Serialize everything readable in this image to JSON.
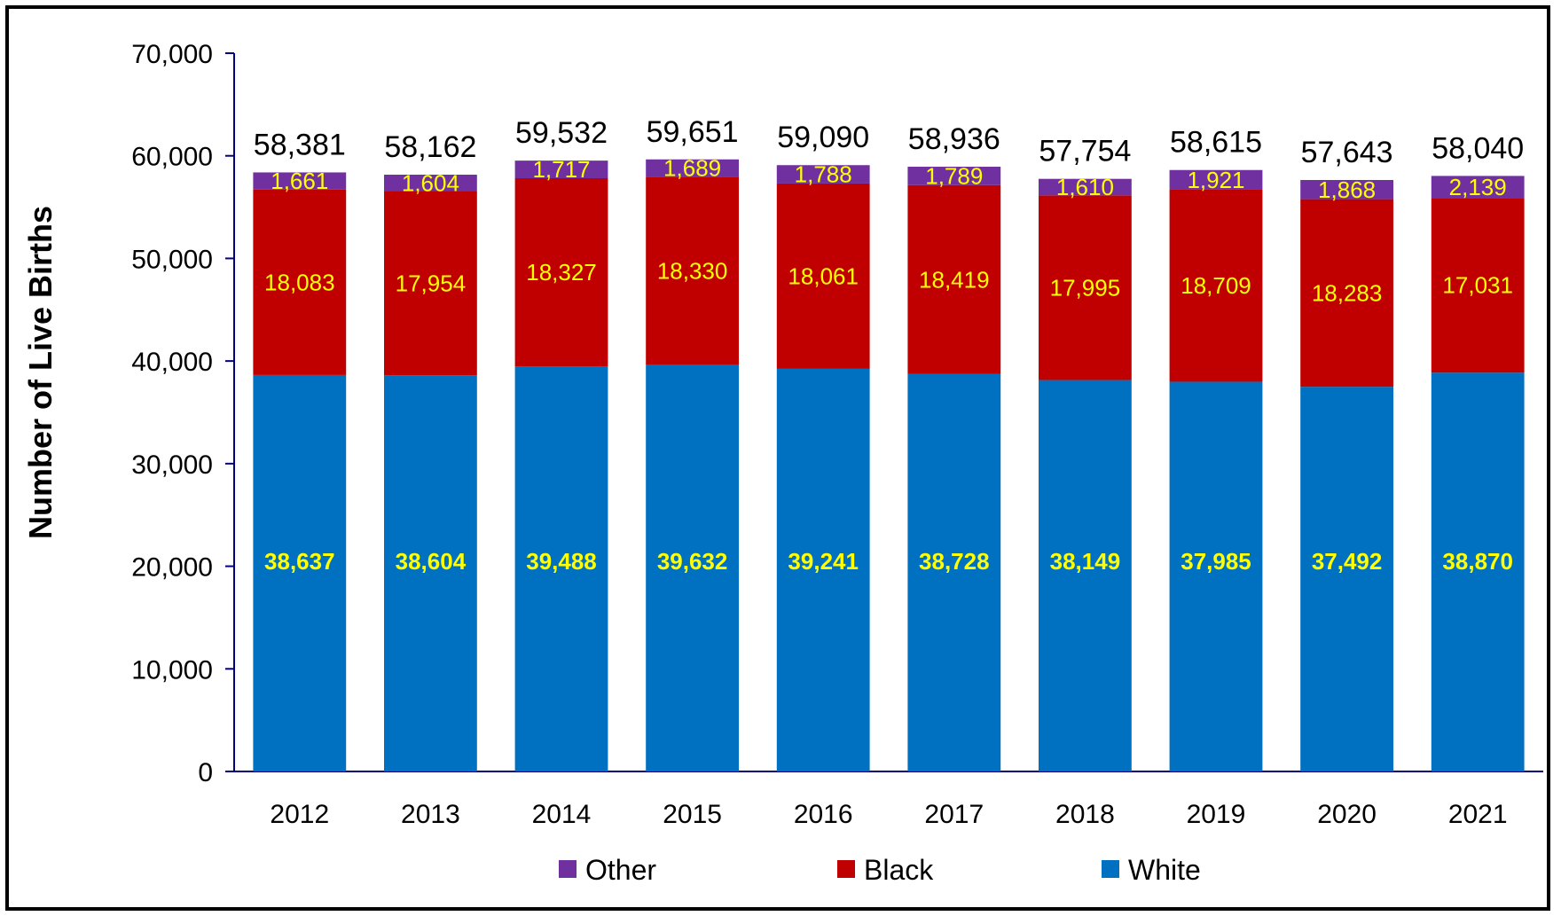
{
  "chart_data": {
    "type": "bar",
    "stacked": true,
    "ylabel": "Number of Live Births",
    "ylim": [
      0,
      70000
    ],
    "yticks": [
      0,
      10000,
      20000,
      30000,
      40000,
      50000,
      60000,
      70000
    ],
    "ytick_labels": [
      "0",
      "10,000",
      "20,000",
      "30,000",
      "40,000",
      "50,000",
      "60,000",
      "70,000"
    ],
    "grid": false,
    "legend_position": "bottom",
    "categories": [
      "2012",
      "2013",
      "2014",
      "2015",
      "2016",
      "2017",
      "2018",
      "2019",
      "2020",
      "2021"
    ],
    "series": [
      {
        "name": "White",
        "color": "#0070c0",
        "values": [
          38637,
          38604,
          39488,
          39632,
          39241,
          38728,
          38149,
          37985,
          37492,
          38870
        ],
        "labels": [
          "38,637",
          "38,604",
          "39,488",
          "39,632",
          "39,241",
          "38,728",
          "38,149",
          "37,985",
          "37,492",
          "38,870"
        ]
      },
      {
        "name": "Black",
        "color": "#c00000",
        "values": [
          18083,
          17954,
          18327,
          18330,
          18061,
          18419,
          17995,
          18709,
          18283,
          17031
        ],
        "labels": [
          "18,083",
          "17,954",
          "18,327",
          "18,330",
          "18,061",
          "18,419",
          "17,995",
          "18,709",
          "18,283",
          "17,031"
        ]
      },
      {
        "name": "Other",
        "color": "#7030a0",
        "values": [
          1661,
          1604,
          1717,
          1689,
          1788,
          1789,
          1610,
          1921,
          1868,
          2139
        ],
        "labels": [
          "1,661",
          "1,604",
          "1,717",
          "1,689",
          "1,788",
          "1,789",
          "1,610",
          "1,921",
          "1,868",
          "2,139"
        ]
      }
    ],
    "totals": [
      58381,
      58162,
      59532,
      59651,
      59090,
      58936,
      57754,
      58615,
      57643,
      58040
    ],
    "total_labels": [
      "58,381",
      "58,162",
      "59,532",
      "59,651",
      "59,090",
      "58,936",
      "57,754",
      "58,615",
      "57,643",
      "58,040"
    ],
    "legend": [
      "Other",
      "Black",
      "White"
    ],
    "label_color": "#ffff00",
    "axis_color": "#000080"
  }
}
